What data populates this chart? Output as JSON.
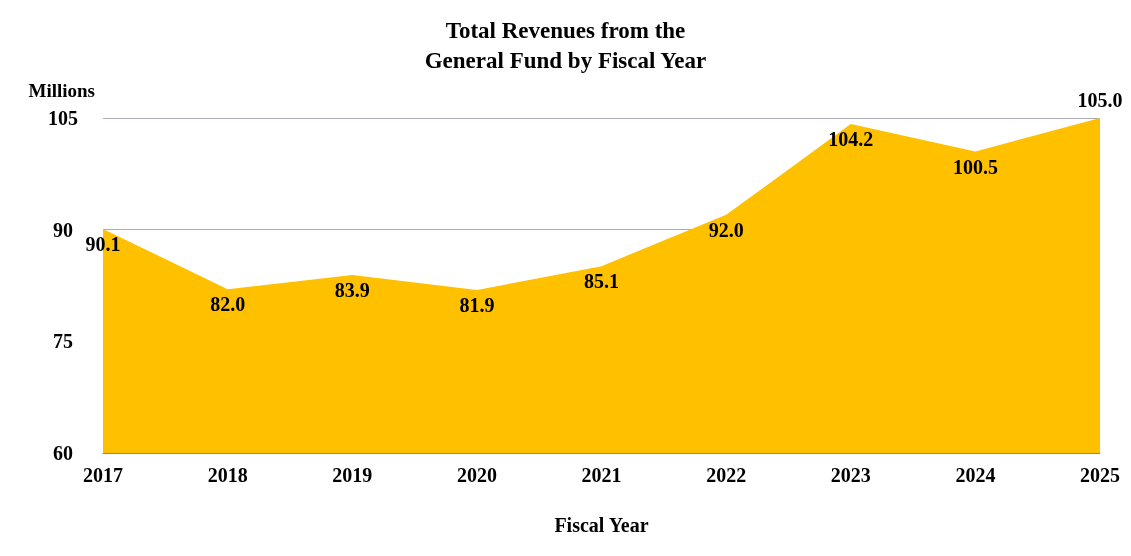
{
  "chart_data": {
    "type": "area",
    "title": "Total Revenues from the\nGeneral Fund by Fiscal Year",
    "xlabel": "Fiscal Year",
    "ylabel": "Millions",
    "categories": [
      "2017",
      "2018",
      "2019",
      "2020",
      "2021",
      "2022",
      "2023",
      "2024",
      "2025"
    ],
    "values": [
      90.1,
      82,
      83.9,
      81.9,
      85.1,
      92,
      104.2,
      100.5,
      105
    ],
    "value_labels": [
      "90.1",
      "82.0",
      "83.9",
      "81.9",
      "85.1",
      "92.0",
      "104.2",
      "100.5",
      "105.0"
    ],
    "color": "#ffc000",
    "ylim": [
      60,
      105
    ],
    "yticks": [
      60,
      75,
      90,
      105
    ],
    "grid": "y"
  }
}
